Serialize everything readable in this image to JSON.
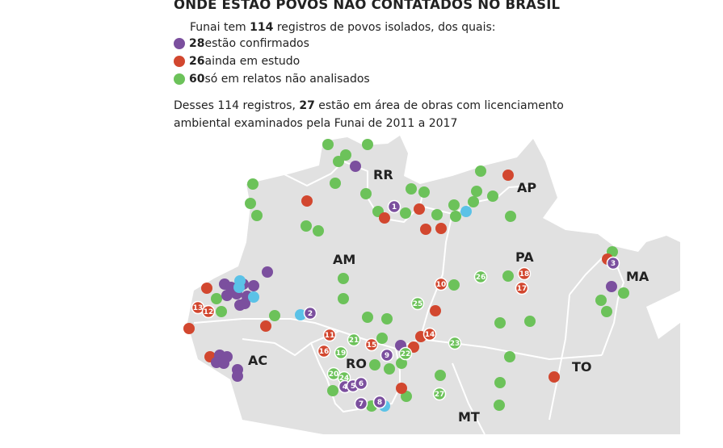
{
  "header": {
    "title": "ONDE ESTÃO POVOS NÃO CONTATADOS NO BRASIL",
    "intro_pre": "Funai tem ",
    "intro_count": "114",
    "intro_post": " registros de povos isolados, dos quais:"
  },
  "legend": [
    {
      "count": "28",
      "label": " estão confirmados",
      "color": "#7b4f9e"
    },
    {
      "count": "26",
      "label": " ainda em estudo",
      "color": "#d2472f"
    },
    {
      "count": "60",
      "label": " só em relatos não analisados",
      "color": "#6cc25a"
    }
  ],
  "note": {
    "line1_pre": "Desses 114 registros, ",
    "line1_count": "27",
    "line1_post": " estão em área de obras com licenciamento",
    "line2": "ambiental examinados pela Funai de 2011 a 2017"
  },
  "colors": {
    "confirmed": "#7b4f9e",
    "study": "#d2472f",
    "reports": "#6cc25a",
    "highlight": "#5bc2e7",
    "land": "#e1e1e1",
    "border": "#ffffff"
  },
  "states": [
    "RR",
    "AP",
    "AM",
    "PA",
    "MA",
    "AC",
    "RO",
    "TO",
    "MT"
  ],
  "markers": [
    {
      "type": "reports",
      "label": "20"
    },
    {
      "type": "reports",
      "label": "24"
    },
    {
      "type": "confirmed",
      "label": "4"
    },
    {
      "type": "confirmed",
      "label": "5"
    },
    {
      "type": "confirmed",
      "label": "6"
    },
    {
      "type": "confirmed",
      "label": "7"
    },
    {
      "type": "confirmed",
      "label": "8"
    },
    {
      "type": "confirmed",
      "label": "9"
    },
    {
      "type": "reports",
      "label": "22"
    },
    {
      "type": "reports",
      "label": "19"
    },
    {
      "type": "study",
      "label": "16"
    },
    {
      "type": "study",
      "label": "11"
    },
    {
      "type": "reports",
      "label": "21"
    },
    {
      "type": "study",
      "label": "15"
    },
    {
      "type": "study",
      "label": "14"
    },
    {
      "type": "reports",
      "label": "23"
    },
    {
      "type": "reports",
      "label": "25"
    },
    {
      "type": "study",
      "label": "10"
    },
    {
      "type": "reports",
      "label": "26"
    },
    {
      "type": "study",
      "label": "18"
    },
    {
      "type": "study",
      "label": "17"
    },
    {
      "type": "confirmed",
      "label": "3"
    },
    {
      "type": "confirmed",
      "label": "2"
    },
    {
      "type": "confirmed",
      "label": "1"
    },
    {
      "type": "study",
      "label": "13"
    },
    {
      "type": "study",
      "label": "12"
    },
    {
      "type": "reports",
      "label": "27"
    }
  ]
}
